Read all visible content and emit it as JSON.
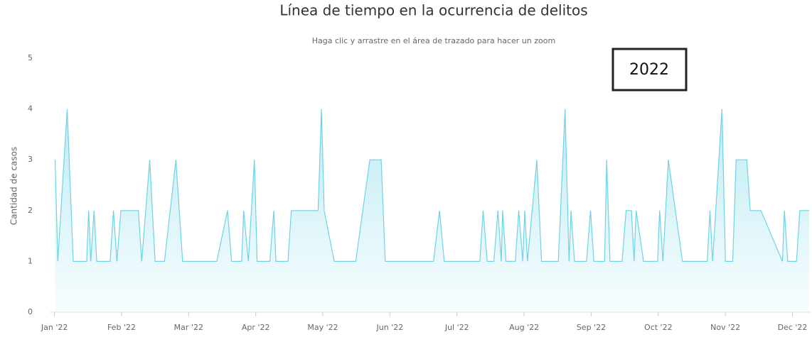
{
  "chart_data": {
    "type": "area",
    "title": "Línea de tiempo en la ocurrencia de delitos",
    "subtitle": "Haga clic y arrastre en el área de trazado para hacer un zoom",
    "y_axis_label": "Cantidad de casos",
    "annotation": "2022",
    "color": "#6fd3e6",
    "grid": false,
    "xlim": [
      -0.07,
      11.27
    ],
    "ylim": [
      0,
      5
    ],
    "yticks": [
      0,
      1,
      2,
      3,
      4,
      5
    ],
    "xticks": [
      {
        "value": 0,
        "label": "Jan '22"
      },
      {
        "value": 1,
        "label": "Feb '22"
      },
      {
        "value": 2,
        "label": "Mar '22"
      },
      {
        "value": 3,
        "label": "Apr '22"
      },
      {
        "value": 4,
        "label": "May '22"
      },
      {
        "value": 5,
        "label": "Jun '22"
      },
      {
        "value": 6,
        "label": "Jul '22"
      },
      {
        "value": 7,
        "label": "Aug '22"
      },
      {
        "value": 8,
        "label": "Sep '22"
      },
      {
        "value": 9,
        "label": "Oct '22"
      },
      {
        "value": 10,
        "label": "Nov '22"
      },
      {
        "value": 11,
        "label": "Dec '22"
      }
    ],
    "x": [
      0.01,
      0.05,
      0.19,
      0.28,
      0.48,
      0.51,
      0.54,
      0.59,
      0.63,
      0.83,
      0.88,
      0.93,
      0.99,
      1.25,
      1.3,
      1.42,
      1.5,
      1.64,
      1.81,
      1.91,
      2.42,
      2.58,
      2.64,
      2.79,
      2.82,
      2.89,
      2.98,
      3.02,
      3.21,
      3.27,
      3.3,
      3.48,
      3.53,
      3.93,
      3.98,
      4.02,
      4.17,
      4.49,
      4.7,
      4.87,
      4.93,
      5.65,
      5.74,
      5.81,
      6.34,
      6.39,
      6.45,
      6.55,
      6.61,
      6.66,
      6.68,
      6.73,
      6.87,
      6.92,
      6.98,
      7.01,
      7.05,
      7.19,
      7.26,
      7.51,
      7.61,
      7.67,
      7.7,
      7.75,
      7.93,
      7.99,
      8.04,
      8.2,
      8.23,
      8.28,
      8.46,
      8.52,
      8.6,
      8.64,
      8.67,
      8.78,
      8.99,
      9.02,
      9.07,
      9.15,
      9.36,
      9.73,
      9.77,
      9.81,
      9.95,
      10.0,
      10.11,
      10.16,
      10.32,
      10.37,
      10.53,
      10.85,
      10.88,
      10.93,
      11.06,
      11.11,
      11.25
    ],
    "values": [
      3,
      1,
      4,
      1,
      1,
      2,
      1,
      2,
      1,
      1,
      2,
      1,
      2,
      2,
      1,
      3,
      1,
      1,
      3,
      1,
      1,
      2,
      1,
      1,
      2,
      1,
      3,
      1,
      1,
      2,
      1,
      1,
      2,
      2,
      4,
      2,
      1,
      1,
      3,
      3,
      1,
      1,
      2,
      1,
      1,
      2,
      1,
      1,
      2,
      1,
      2,
      1,
      1,
      2,
      1,
      2,
      1,
      3,
      1,
      1,
      4,
      1,
      2,
      1,
      1,
      2,
      1,
      1,
      3,
      1,
      1,
      2,
      2,
      1,
      2,
      1,
      1,
      2,
      1,
      3,
      1,
      1,
      2,
      1,
      4,
      1,
      1,
      3,
      3,
      2,
      2,
      1,
      2,
      1,
      1,
      2,
      2
    ]
  }
}
